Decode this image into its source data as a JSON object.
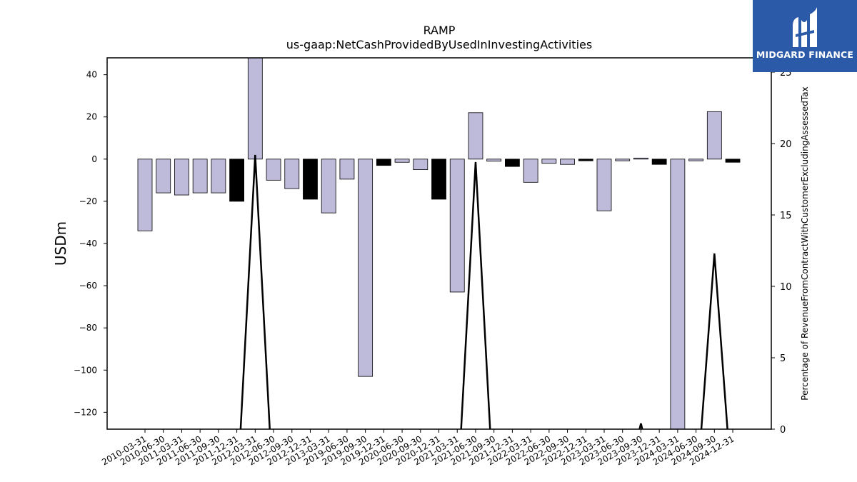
{
  "chart_data": {
    "type": "bar",
    "title": "RAMP",
    "subtitle": "us-gaap:NetCashProvidedByUsedInInvestingActivities",
    "ylabel": "USDm",
    "y2label": "Percentage of RevenueFromContractWithCustomerExcludingAssessedTax",
    "ylim": [
      -128,
      48
    ],
    "y2lim": [
      0,
      26
    ],
    "yticks": [
      40,
      20,
      0,
      -20,
      -40,
      -60,
      -80,
      -100,
      -120
    ],
    "yticklabels": [
      "40",
      "20",
      "0",
      "−20",
      "−40",
      "−60",
      "−80",
      "−100",
      "−120"
    ],
    "y2ticks": [
      0,
      5,
      10,
      15,
      20,
      25
    ],
    "y2ticklabels": [
      "0",
      "5",
      "10",
      "15",
      "20",
      "25"
    ],
    "categories": [
      "2010-03-31",
      "2010-06-30",
      "2011-03-31",
      "2011-06-30",
      "2011-09-30",
      "2011-12-31",
      "2012-03-31",
      "2012-06-30",
      "2012-09-30",
      "2012-12-31",
      "2013-03-31",
      "2019-06-30",
      "2019-09-30",
      "2019-12-31",
      "2020-06-30",
      "2020-09-30",
      "2020-12-31",
      "2021-03-31",
      "2021-06-30",
      "2021-09-30",
      "2021-12-31",
      "2022-03-31",
      "2022-06-30",
      "2022-09-30",
      "2022-12-31",
      "2023-03-31",
      "2023-06-30",
      "2023-09-30",
      "2023-12-31",
      "2024-03-31",
      "2024-06-30",
      "2024-09-30",
      "2024-12-31"
    ],
    "values": [
      -34,
      -16,
      -17,
      -16,
      -16,
      -20,
      55,
      -10,
      -14,
      -19,
      -25.5,
      -9.5,
      -103,
      -3,
      -1.5,
      -5,
      -19,
      -63,
      22,
      -1,
      -3.5,
      -11,
      -2,
      -2.5,
      -0.8,
      -24.5,
      -0.8,
      0.5,
      -2.5,
      -130,
      -0.8,
      22.5,
      -1.5
    ],
    "highlight": [
      false,
      false,
      false,
      false,
      false,
      true,
      false,
      false,
      false,
      true,
      false,
      false,
      false,
      true,
      false,
      false,
      true,
      false,
      false,
      false,
      true,
      false,
      false,
      false,
      true,
      false,
      false,
      false,
      true,
      false,
      false,
      false,
      true
    ],
    "line_series": {
      "axis": "right",
      "values": [
        -5,
        -5,
        -5,
        -5,
        -5,
        -5,
        19.2,
        -5,
        -5,
        -5,
        -5,
        -5,
        -5,
        -5,
        -5,
        -5,
        -5,
        -5,
        18.7,
        -5,
        -5,
        -5,
        -5,
        -5,
        -5,
        -5,
        -5,
        0.4,
        -5,
        -5,
        -5,
        12.3,
        -5
      ]
    },
    "colors": {
      "bar": "#bebad9",
      "bar_highlight": "#000000",
      "edge": "#000000",
      "line": "#000000"
    },
    "grid": false
  },
  "logo": {
    "text": "MIDGARD FINANCE",
    "bg": "#2b5aa9"
  }
}
